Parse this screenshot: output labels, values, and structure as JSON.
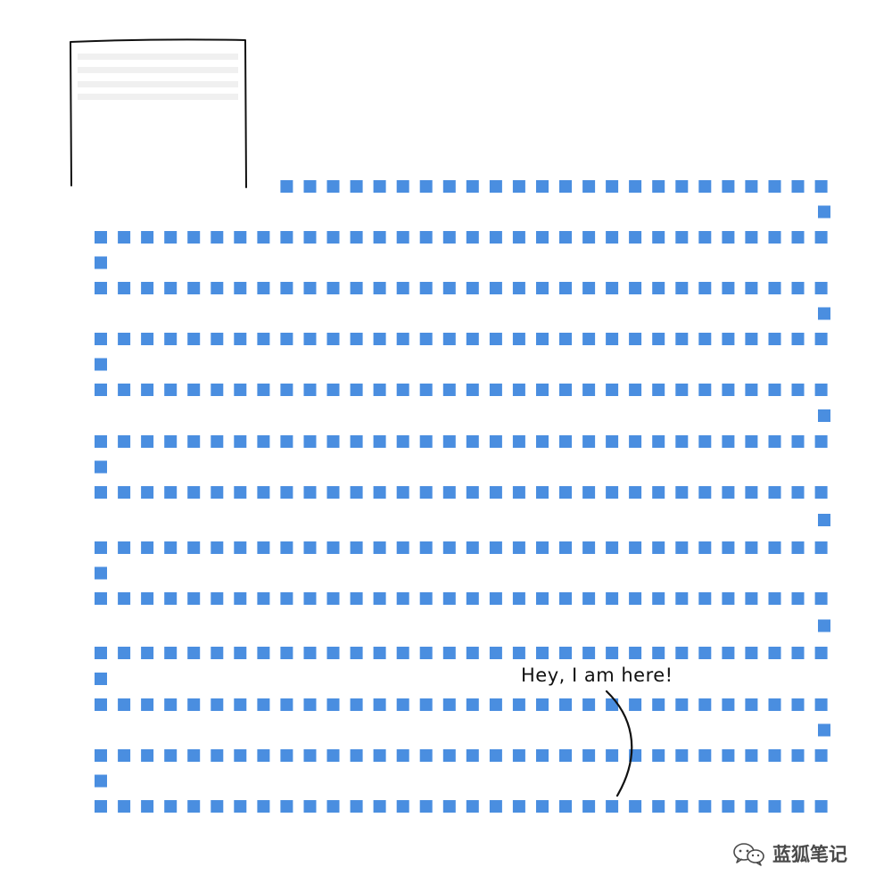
{
  "annotation": {
    "text": "Hey, I am here!"
  },
  "watermark": {
    "text": "蓝狐笔记",
    "icon": "wechat-icon"
  },
  "colors": {
    "dot": "#4a8ee0",
    "sketch_line": "#111111",
    "placeholder": "#f0f0f0",
    "watermark": "#4a4a4a"
  }
}
